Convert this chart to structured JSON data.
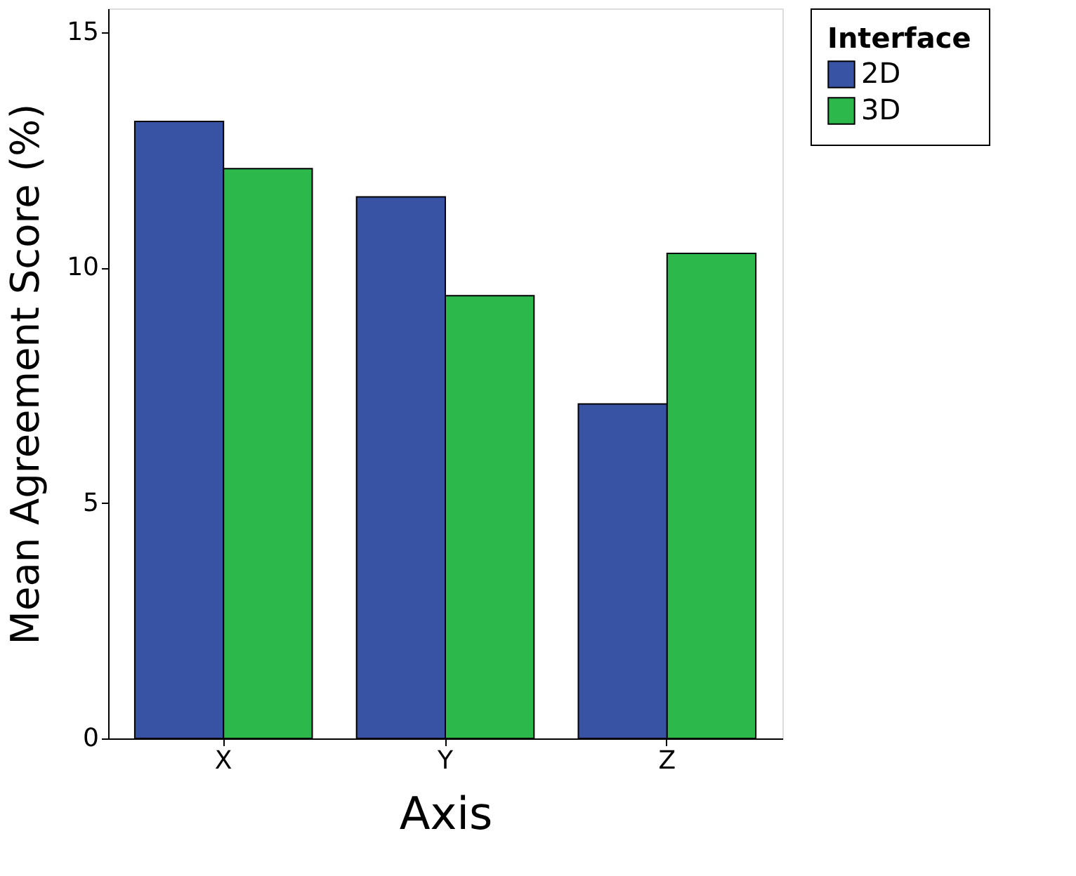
{
  "chart_data": {
    "type": "bar",
    "xlabel": "Axis",
    "ylabel": "Mean  Agreement  Score  (%)",
    "legend_title": "Interface",
    "legend": "right",
    "categories": [
      "X",
      "Y",
      "Z"
    ],
    "series": [
      {
        "name": "2D",
        "color": "#3953a4",
        "values": [
          13.1,
          11.5,
          7.1
        ]
      },
      {
        "name": "3D",
        "color": "#2db84b",
        "values": [
          12.1,
          9.4,
          10.3
        ]
      }
    ],
    "ylim": [
      0,
      15.5
    ],
    "yticks": [
      0,
      5,
      10,
      15
    ],
    "grid": false
  }
}
